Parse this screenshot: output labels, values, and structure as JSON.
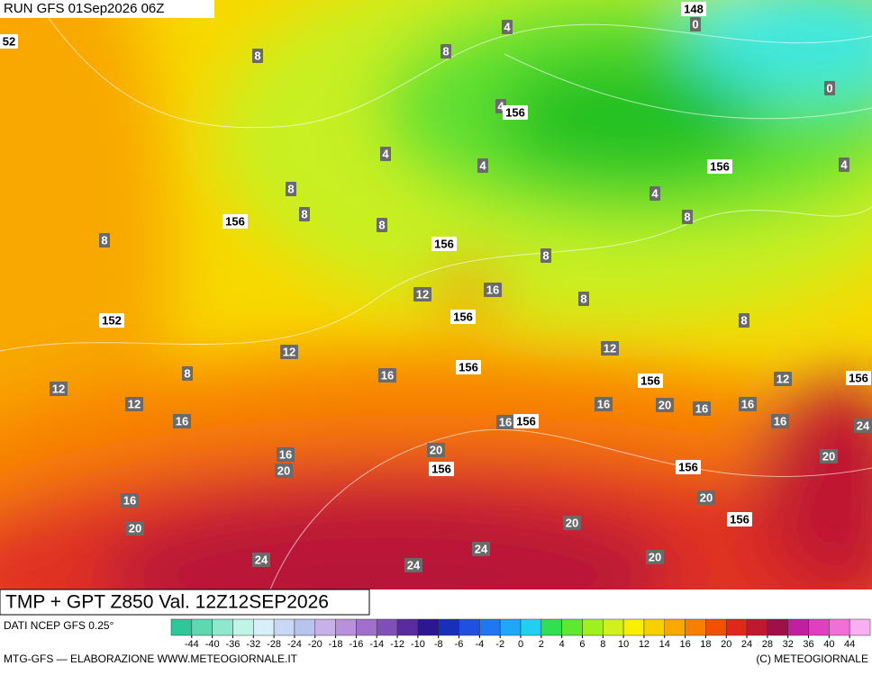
{
  "header": {
    "run": "RUN GFS 01Sep2026 06Z"
  },
  "map": {
    "labels": [
      {
        "value": 4,
        "kind": "temperature"
      },
      {
        "value": 8,
        "kind": "temperature"
      },
      {
        "value": 8,
        "kind": "temperature"
      },
      {
        "value": 4,
        "kind": "temperature"
      },
      {
        "value": 4,
        "kind": "temperature"
      },
      {
        "value": 4,
        "kind": "temperature"
      },
      {
        "value": 4,
        "kind": "temperature"
      },
      {
        "value": 4,
        "kind": "temperature"
      },
      {
        "value": 8,
        "kind": "temperature"
      },
      {
        "value": 8,
        "kind": "temperature"
      },
      {
        "value": 8,
        "kind": "temperature"
      },
      {
        "value": 8,
        "kind": "temperature"
      },
      {
        "value": 8,
        "kind": "temperature"
      },
      {
        "value": 8,
        "kind": "temperature"
      },
      {
        "value": 12,
        "kind": "temperature"
      },
      {
        "value": 16,
        "kind": "temperature"
      },
      {
        "value": 8,
        "kind": "temperature"
      },
      {
        "value": 8,
        "kind": "temperature"
      },
      {
        "value": 12,
        "kind": "temperature"
      },
      {
        "value": 12,
        "kind": "temperature"
      },
      {
        "value": 8,
        "kind": "temperature"
      },
      {
        "value": 16,
        "kind": "temperature"
      },
      {
        "value": 12,
        "kind": "temperature"
      },
      {
        "value": 12,
        "kind": "temperature"
      },
      {
        "value": 12,
        "kind": "temperature"
      },
      {
        "value": 16,
        "kind": "temperature"
      },
      {
        "value": 20,
        "kind": "temperature"
      },
      {
        "value": 16,
        "kind": "temperature"
      },
      {
        "value": 16,
        "kind": "temperature"
      },
      {
        "value": 16,
        "kind": "temperature"
      },
      {
        "value": 16,
        "kind": "temperature"
      },
      {
        "value": 16,
        "kind": "temperature"
      },
      {
        "value": 24,
        "kind": "temperature"
      },
      {
        "value": 20,
        "kind": "temperature"
      },
      {
        "value": 16,
        "kind": "temperature"
      },
      {
        "value": 20,
        "kind": "temperature"
      },
      {
        "value": 20,
        "kind": "temperature"
      },
      {
        "value": 16,
        "kind": "temperature"
      },
      {
        "value": 20,
        "kind": "temperature"
      },
      {
        "value": 20,
        "kind": "temperature"
      },
      {
        "value": 20,
        "kind": "temperature"
      },
      {
        "value": 24,
        "kind": "temperature"
      },
      {
        "value": 24,
        "kind": "temperature"
      },
      {
        "value": 24,
        "kind": "temperature"
      },
      {
        "value": 20,
        "kind": "temperature"
      },
      {
        "value": 0,
        "kind": "temperature"
      },
      {
        "value": 0,
        "kind": "temperature"
      },
      {
        "value": 52,
        "kind": "geopotential"
      },
      {
        "value": 148,
        "kind": "geopotential"
      },
      {
        "value": 156,
        "kind": "geopotential"
      },
      {
        "value": 156,
        "kind": "geopotential"
      },
      {
        "value": 156,
        "kind": "geopotential"
      },
      {
        "value": 156,
        "kind": "geopotential"
      },
      {
        "value": 152,
        "kind": "geopotential"
      },
      {
        "value": 156,
        "kind": "geopotential"
      },
      {
        "value": 156,
        "kind": "geopotential"
      },
      {
        "value": 156,
        "kind": "geopotential"
      },
      {
        "value": 156,
        "kind": "geopotential"
      },
      {
        "value": 156,
        "kind": "geopotential"
      },
      {
        "value": 156,
        "kind": "geopotential"
      },
      {
        "value": 156,
        "kind": "geopotential"
      },
      {
        "value": 156,
        "kind": "geopotential"
      }
    ]
  },
  "footer": {
    "title": "TMP + GPT Z850 Val. 12Z12SEP2026",
    "source": "DATI NCEP GFS 0.25°",
    "credit": "MTG-GFS — ELABORAZIONE WWW.METEOGIORNALE.IT",
    "copyright": "(C) METEOGIORNALE"
  },
  "colorbar": {
    "colors": [
      "#2fc79a",
      "#5ed8b0",
      "#8fe8cc",
      "#c0f4e6",
      "#d8eef8",
      "#c8d8f4",
      "#b8c4ec",
      "#c8b0e8",
      "#b890dc",
      "#a070cc",
      "#8050b8",
      "#5a2aa0",
      "#2a1890",
      "#1830b8",
      "#2050e0",
      "#2078f0",
      "#20a8f8",
      "#20d0f0",
      "#30e050",
      "#60e830",
      "#a0f020",
      "#d0f020",
      "#f8f000",
      "#f8d000",
      "#f8a800",
      "#f88000",
      "#f05000",
      "#e02818",
      "#c01830",
      "#a01048",
      "#c020a0",
      "#e040c0",
      "#f070d8",
      "#f8b0f0"
    ],
    "ticks": [
      -44,
      -40,
      -36,
      -32,
      -28,
      -24,
      -20,
      -18,
      -16,
      -14,
      -12,
      -10,
      -8,
      -6,
      -4,
      -2,
      0,
      2,
      4,
      6,
      8,
      10,
      12,
      14,
      16,
      18,
      20,
      24,
      28,
      32,
      36,
      40,
      44
    ]
  }
}
